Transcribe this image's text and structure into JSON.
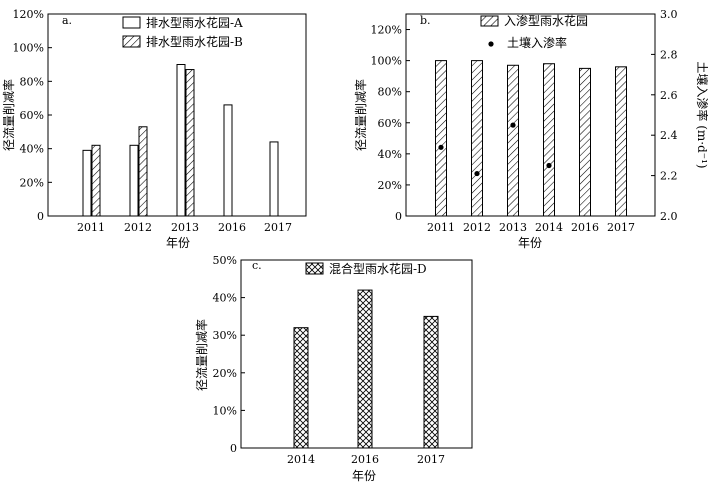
{
  "chart_data": [
    {
      "id": "a",
      "panel_label": "a.",
      "type": "bar",
      "xlabel": "年份",
      "ylabel": "径流量削减率",
      "categories": [
        "2011",
        "2012",
        "2013",
        "2016",
        "2017"
      ],
      "ylim": [
        0,
        120
      ],
      "yticks": [
        "0",
        "20%",
        "40%",
        "60%",
        "80%",
        "100%",
        "120%"
      ],
      "series": [
        {
          "name": "排水型雨水花园-A",
          "pattern": "open",
          "values": [
            39,
            42,
            90,
            66,
            44
          ]
        },
        {
          "name": "排水型雨水花园-B",
          "pattern": "diagonal",
          "values": [
            42,
            53,
            87,
            null,
            null
          ]
        }
      ],
      "legend": "top-right",
      "grid": false
    },
    {
      "id": "b",
      "panel_label": "b.",
      "type": "bar",
      "xlabel": "年份",
      "ylabel": "径流量削减率",
      "y2label": "土壤入渗率 (m·d⁻¹)",
      "categories": [
        "2011",
        "2012",
        "2013",
        "2014",
        "2016",
        "2017"
      ],
      "ylim": [
        0,
        130
      ],
      "yticks": [
        "0",
        "20%",
        "40%",
        "60%",
        "80%",
        "100%",
        "120%"
      ],
      "y2lim": [
        2.0,
        3.0
      ],
      "y2ticks": [
        "2.0",
        "2.2",
        "2.4",
        "2.6",
        "2.8",
        "3.0"
      ],
      "series": [
        {
          "name": "入渗型雨水花园",
          "pattern": "diagonal",
          "axis": "left",
          "values": [
            100,
            100,
            97,
            98,
            95,
            96
          ]
        },
        {
          "name": "土壤入渗率",
          "type": "scatter",
          "axis": "right",
          "values": [
            2.34,
            2.21,
            2.45,
            2.25,
            null,
            null
          ]
        }
      ],
      "legend": "top",
      "grid": false
    },
    {
      "id": "c",
      "panel_label": "c.",
      "type": "bar",
      "xlabel": "年份",
      "ylabel": "径流量削减率",
      "categories": [
        "2014",
        "2016",
        "2017"
      ],
      "ylim": [
        0,
        50
      ],
      "yticks": [
        "0",
        "10%",
        "20%",
        "30%",
        "40%",
        "50%"
      ],
      "series": [
        {
          "name": "混合型雨水花园-D",
          "pattern": "crosshatch",
          "values": [
            32,
            42,
            35
          ]
        }
      ],
      "legend": "top",
      "grid": false
    }
  ]
}
